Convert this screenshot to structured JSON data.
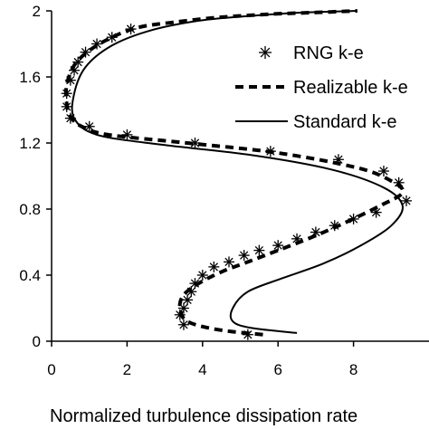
{
  "chart_data": {
    "type": "line",
    "title": "",
    "xlabel": "Normalized turbulence dissipation rate",
    "ylabel": "",
    "xlim": [
      0,
      10
    ],
    "ylim": [
      0,
      2
    ],
    "xticks": [
      "0",
      "2",
      "4",
      "6",
      "8"
    ],
    "yticks": [
      "0",
      "0.4",
      "0.8",
      "1.2",
      "1.6",
      "2"
    ],
    "xtick_values": [
      0,
      2,
      4,
      6,
      8
    ],
    "ytick_values": [
      0,
      0.4,
      0.8,
      1.2,
      1.6,
      2
    ],
    "grid": false,
    "legend_position": "top-right",
    "series": [
      {
        "name": "RNG k-e",
        "style": "markers",
        "marker": "asterisk",
        "color": "#000000",
        "x": [
          5.2,
          3.5,
          3.4,
          3.5,
          3.6,
          3.7,
          3.8,
          4.0,
          4.3,
          4.7,
          5.1,
          5.5,
          6.0,
          6.5,
          7.0,
          7.5,
          8.0,
          8.6,
          9.4,
          9.2,
          8.8,
          7.6,
          5.8,
          3.8,
          2.0,
          1.0,
          0.5,
          0.4,
          0.4,
          0.5,
          0.6,
          0.7,
          0.9,
          1.2,
          1.6,
          2.1
        ],
        "y": [
          0.04,
          0.1,
          0.16,
          0.2,
          0.25,
          0.3,
          0.35,
          0.4,
          0.45,
          0.48,
          0.52,
          0.55,
          0.58,
          0.62,
          0.66,
          0.7,
          0.74,
          0.78,
          0.85,
          0.96,
          1.03,
          1.1,
          1.15,
          1.2,
          1.25,
          1.3,
          1.35,
          1.42,
          1.5,
          1.58,
          1.64,
          1.69,
          1.75,
          1.8,
          1.84,
          1.89
        ]
      },
      {
        "name": "Realizable k-e",
        "style": "dashed",
        "color": "#000000",
        "x": [
          5.6,
          4.4,
          3.6,
          3.4,
          3.5,
          3.9,
          4.5,
          5.2,
          6.0,
          6.9,
          7.8,
          8.7,
          9.3,
          9.0,
          8.1,
          6.0,
          3.6,
          1.5,
          0.8,
          0.5,
          0.4,
          0.4,
          0.6,
          1.0,
          1.6,
          2.3,
          3.2,
          4.4,
          5.8,
          7.0,
          8.1
        ],
        "y": [
          0.04,
          0.07,
          0.12,
          0.2,
          0.28,
          0.35,
          0.42,
          0.48,
          0.55,
          0.63,
          0.72,
          0.82,
          0.9,
          0.97,
          1.05,
          1.14,
          1.2,
          1.25,
          1.3,
          1.36,
          1.44,
          1.55,
          1.67,
          1.76,
          1.84,
          1.9,
          1.93,
          1.96,
          1.98,
          1.99,
          2.0
        ]
      },
      {
        "name": "Standard k-e",
        "style": "solid",
        "color": "#000000",
        "x": [
          6.5,
          5.3,
          4.8,
          4.8,
          5.2,
          6.1,
          7.2,
          8.2,
          9.0,
          9.3,
          8.8,
          7.4,
          5.2,
          2.9,
          1.2,
          0.6,
          0.6,
          0.9,
          1.6,
          2.6,
          3.9,
          5.3,
          6.7,
          8.1
        ],
        "y": [
          0.05,
          0.08,
          0.12,
          0.2,
          0.3,
          0.38,
          0.47,
          0.58,
          0.7,
          0.82,
          0.93,
          1.04,
          1.13,
          1.19,
          1.25,
          1.35,
          1.5,
          1.66,
          1.79,
          1.88,
          1.94,
          1.97,
          1.99,
          2.0
        ]
      }
    ]
  }
}
